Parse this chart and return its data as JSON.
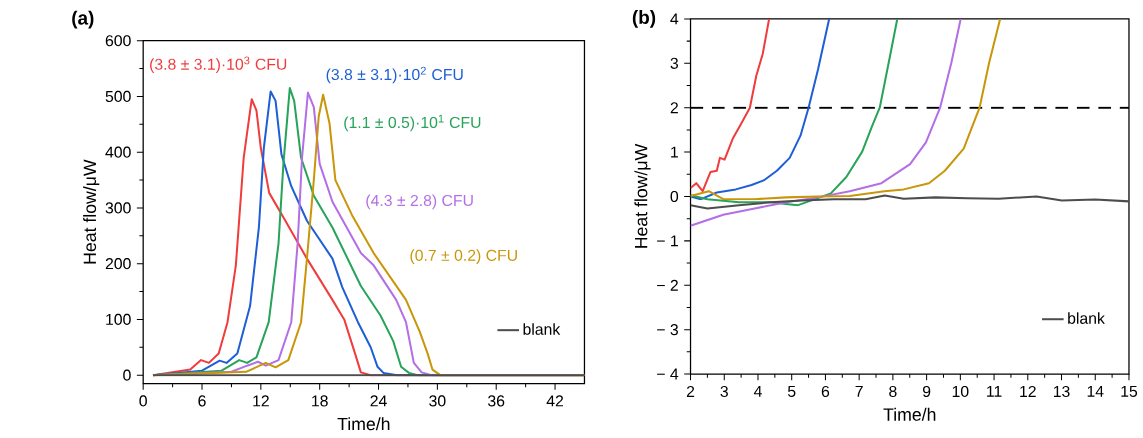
{
  "chart_data": [
    {
      "type": "line",
      "title": "(a)",
      "xlabel": "Time/h",
      "ylabel": "Heat flow/μW",
      "xlim": [
        0,
        45
      ],
      "ylim": [
        -15,
        600
      ],
      "xticks": [
        0,
        6,
        12,
        18,
        24,
        30,
        36,
        42
      ],
      "yticks": [
        0,
        100,
        200,
        300,
        400,
        500,
        600
      ],
      "legend": "bottom right",
      "line_style": "solid",
      "marker": "none",
      "grid": false,
      "series": [
        {
          "name": "(3.8 ± 3.1)·10$^{3}$ CFU",
          "color": "#f03c3c",
          "x": [
            1.0,
            4.8,
            5.9,
            6.7,
            7.7,
            8.6,
            9.45,
            10.25,
            10.6,
            11.07,
            11.55,
            12.0,
            12.85,
            14.5,
            16.7,
            19.3,
            20.5,
            21.6,
            22.2,
            23.2,
            45
          ],
          "values": [
            0,
            10,
            27,
            22,
            39,
            95,
            197,
            390,
            435,
            495,
            475,
            407,
            327,
            277,
            209,
            135,
            100,
            39,
            5,
            0,
            0
          ]
        },
        {
          "name": "(3.8 ± 3.1)·10$^{2}$ CFU",
          "color": "#1f5fd6",
          "x": [
            1.0,
            6.0,
            7.8,
            8.5,
            9.6,
            10.9,
            11.8,
            12.3,
            13.0,
            13.5,
            14.1,
            15.1,
            16.7,
            19.3,
            20.3,
            21.9,
            23.2,
            23.9,
            24.5,
            25.9,
            45
          ],
          "values": [
            0,
            8,
            26,
            22,
            39,
            124,
            265,
            407,
            509,
            492,
            396,
            339,
            277,
            209,
            158,
            95,
            50,
            15,
            4,
            0,
            0
          ]
        },
        {
          "name": "(1.1 ± 0.5)·10$^{1}$ CFU",
          "color": "#27a35a",
          "x": [
            1.0,
            8.0,
            9.8,
            10.6,
            11.55,
            12.8,
            13.8,
            14.3,
            14.95,
            15.4,
            16.1,
            17.4,
            19.3,
            22.2,
            24.2,
            25.5,
            26.3,
            27.1,
            28.0,
            45
          ],
          "values": [
            0,
            8,
            27,
            22,
            32,
            95,
            236,
            379,
            515,
            492,
            390,
            322,
            265,
            160,
            107,
            61,
            15,
            4,
            0,
            0
          ]
        },
        {
          "name": "(4.3 ± 2.8) CFU",
          "color": "#b46ee6",
          "x": [
            1.0,
            9.0,
            10.6,
            11.7,
            12.5,
            13.8,
            15.1,
            15.75,
            16.2,
            16.8,
            17.4,
            18.0,
            19.3,
            22.2,
            23.5,
            25.8,
            26.8,
            27.6,
            28.4,
            29.4,
            45
          ],
          "values": [
            0,
            6,
            17,
            24,
            17,
            27,
            95,
            236,
            390,
            507,
            481,
            379,
            311,
            219,
            197,
            135,
            95,
            22,
            5,
            0,
            0
          ]
        },
        {
          "name": "(0.7 ± 0.2) CFU",
          "color": "#c9960a",
          "x": [
            1.0,
            10.5,
            12.5,
            13.5,
            14.8,
            16.1,
            16.7,
            17.4,
            17.9,
            18.35,
            19.0,
            19.6,
            21.3,
            23.5,
            26.8,
            28.2,
            29.0,
            29.5,
            30.3,
            45
          ],
          "values": [
            0,
            6,
            22,
            14,
            27,
            95,
            209,
            350,
            464,
            503,
            452,
            350,
            287,
            219,
            135,
            78,
            39,
            10,
            0,
            0
          ]
        },
        {
          "name": "blank",
          "color": "#4d4d4d",
          "x": [
            1.0,
            45
          ],
          "values": [
            0,
            0
          ]
        }
      ]
    },
    {
      "type": "line",
      "title": "(b)",
      "xlabel": "Time/h",
      "ylabel": "Heat flow/μW",
      "xlim": [
        2,
        15
      ],
      "ylim": [
        -4,
        4
      ],
      "xticks": [
        2,
        3,
        4,
        5,
        6,
        7,
        8,
        9,
        10,
        11,
        12,
        13,
        14,
        15
      ],
      "yticks": [
        {
          "value": -4,
          "label": "− 4"
        },
        {
          "value": -3,
          "label": "− 3"
        },
        {
          "value": -2,
          "label": "− 2"
        },
        {
          "value": -1,
          "label": "− 1"
        },
        0,
        1,
        2,
        3,
        4
      ],
      "legend": "bottom right",
      "line_style": "solid",
      "marker": "none",
      "grid": false,
      "ref_lines": [
        {
          "axis": "y",
          "value": 2,
          "color": "#000000",
          "line_style": "dashed"
        }
      ],
      "series": [
        {
          "color": "#f03c3c",
          "x": [
            2.0,
            2.17,
            2.36,
            2.59,
            2.78,
            2.87,
            3.01,
            3.25,
            3.48,
            3.76,
            3.95,
            4.14,
            4.33
          ],
          "values": [
            0.19,
            0.3,
            0.12,
            0.55,
            0.58,
            0.87,
            0.83,
            1.3,
            1.61,
            2.0,
            2.72,
            3.21,
            4.0
          ]
        },
        {
          "color": "#1f5fd6",
          "x": [
            2.0,
            2.31,
            2.78,
            3.34,
            3.81,
            4.19,
            4.56,
            4.94,
            5.26,
            5.5,
            5.78,
            6.11
          ],
          "values": [
            0,
            -0.06,
            0.09,
            0.16,
            0.26,
            0.37,
            0.58,
            0.87,
            1.37,
            2.0,
            2.86,
            4.0
          ]
        },
        {
          "color": "#27a35a",
          "x": [
            2.0,
            2.5,
            3.44,
            4.37,
            5.17,
            5.69,
            6.16,
            6.62,
            7.09,
            7.38,
            7.61,
            7.89,
            8.13
          ],
          "values": [
            0.03,
            -0.06,
            -0.13,
            -0.13,
            -0.2,
            -0.06,
            0.07,
            0.44,
            1.01,
            1.58,
            2.0,
            3.07,
            4.0
          ]
        },
        {
          "color": "#b46ee6",
          "x": [
            2.0,
            2.97,
            3.9,
            4.84,
            5.78,
            6.72,
            7.66,
            7.94,
            8.51,
            8.98,
            9.4,
            9.73,
            10.01
          ],
          "values": [
            -0.66,
            -0.41,
            -0.27,
            -0.13,
            -0.02,
            0.12,
            0.3,
            0.44,
            0.73,
            1.22,
            2.0,
            3.0,
            4.0
          ]
        },
        {
          "color": "#c9960a",
          "x": [
            2.0,
            2.54,
            2.97,
            3.9,
            4.84,
            5.78,
            6.72,
            7.75,
            8.32,
            9.07,
            9.54,
            10.1,
            10.57,
            10.85,
            11.18
          ],
          "values": [
            0.01,
            0.12,
            -0.06,
            -0.06,
            -0.02,
            0,
            0.01,
            0.12,
            0.16,
            0.3,
            0.58,
            1.08,
            2.0,
            3.0,
            4.0
          ]
        },
        {
          "name": "blank",
          "color": "#4d4d4d",
          "x": [
            2.0,
            2.5,
            3.44,
            4.37,
            5.31,
            6.25,
            7.19,
            7.76,
            8.32,
            9.26,
            10.2,
            11.14,
            12.26,
            13.01,
            14.0,
            15.0
          ],
          "values": [
            -0.2,
            -0.27,
            -0.2,
            -0.13,
            -0.09,
            -0.06,
            -0.06,
            0.02,
            -0.05,
            -0.02,
            -0.04,
            -0.05,
            0.0,
            -0.09,
            -0.07,
            -0.11
          ]
        }
      ]
    }
  ]
}
